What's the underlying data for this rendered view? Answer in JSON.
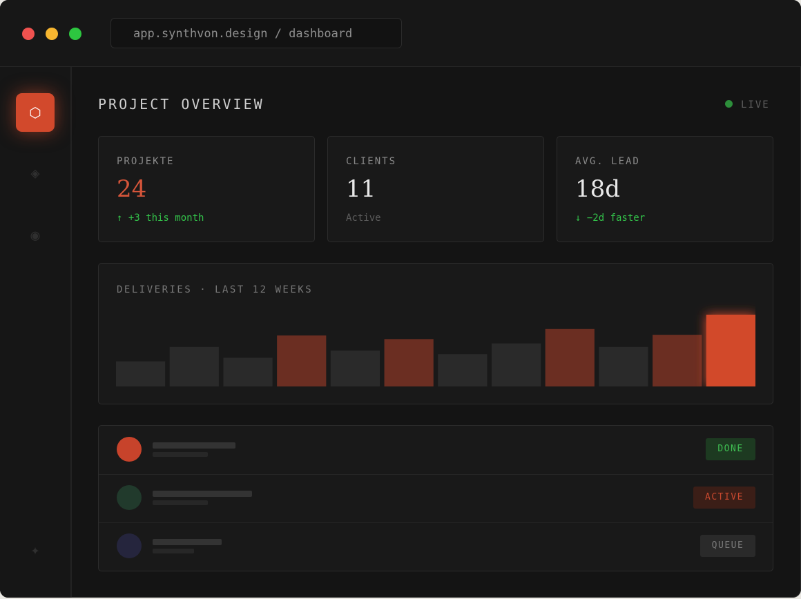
{
  "browser": {
    "url": "app.synthvon.design / dashboard"
  },
  "sidebar": {
    "items": [
      {
        "icon": "hexagon-icon",
        "glyph": "⬡",
        "active": true
      },
      {
        "icon": "diamond-icon",
        "glyph": "◈",
        "active": false
      },
      {
        "icon": "circle-dot-icon",
        "glyph": "◉",
        "active": false
      },
      {
        "icon": "sparkle-icon",
        "glyph": "✦",
        "active": false
      }
    ]
  },
  "header": {
    "title": "PROJECT OVERVIEW",
    "status": "LIVE"
  },
  "stats": [
    {
      "label": "PROJEKTE",
      "value": "24",
      "sub": "↑ +3 this month"
    },
    {
      "label": "CLIENTS",
      "value": "11",
      "sub": "Active"
    },
    {
      "label": "AVG. LEAD",
      "value": "18d",
      "sub": "↓ −2d faster"
    }
  ],
  "chart_data": {
    "type": "bar",
    "title": "DELIVERIES · LAST 12 WEEKS",
    "values": [
      35,
      55,
      40,
      71,
      50,
      66,
      45,
      60,
      80,
      55,
      72,
      100
    ],
    "highlight": [
      false,
      false,
      false,
      true,
      false,
      true,
      false,
      false,
      true,
      false,
      true,
      true
    ],
    "ylim": [
      0,
      100
    ],
    "colors": {
      "base": "#2a2a2a",
      "highlight": "#6b2e22",
      "peak": "#d2492c"
    }
  },
  "list": {
    "rows": [
      {
        "avatar_color": "#c7432b",
        "status": "DONE"
      },
      {
        "avatar_color": "#213a2c",
        "status": "ACTIVE"
      },
      {
        "avatar_color": "#25253d",
        "status": "QUEUE"
      }
    ]
  },
  "colors": {
    "accent": "#d2492c",
    "success": "#33c24a",
    "background": "#141414"
  }
}
